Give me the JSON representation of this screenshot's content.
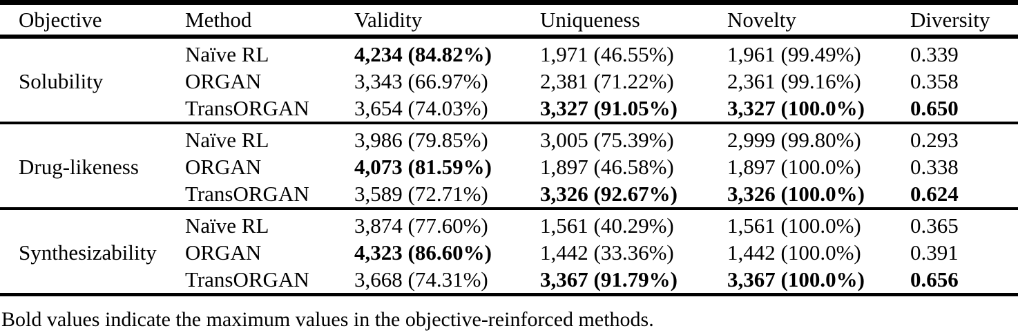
{
  "colors": {
    "background": "#ffffff",
    "text": "#000000",
    "rule": "#000000"
  },
  "table": {
    "headers": [
      "Objective",
      "Method",
      "Validity",
      "Uniqueness",
      "Novelty",
      "Diversity"
    ],
    "groups": [
      {
        "objective": "Solubility",
        "rows": [
          {
            "method": "Naïve RL",
            "validity": {
              "text": "4,234 (84.82%)",
              "bold": true
            },
            "uniqueness": {
              "text": "1,971 (46.55%)",
              "bold": false
            },
            "novelty": {
              "text": "1,961 (99.49%)",
              "bold": false
            },
            "diversity": {
              "text": "0.339",
              "bold": false
            }
          },
          {
            "method": "ORGAN",
            "validity": {
              "text": "3,343 (66.97%)",
              "bold": false
            },
            "uniqueness": {
              "text": "2,381 (71.22%)",
              "bold": false
            },
            "novelty": {
              "text": "2,361 (99.16%)",
              "bold": false
            },
            "diversity": {
              "text": "0.358",
              "bold": false
            }
          },
          {
            "method": "TransORGAN",
            "validity": {
              "text": "3,654 (74.03%)",
              "bold": false
            },
            "uniqueness": {
              "text": "3,327 (91.05%)",
              "bold": true
            },
            "novelty": {
              "text": "3,327 (100.0%)",
              "bold": true
            },
            "diversity": {
              "text": "0.650",
              "bold": true
            }
          }
        ]
      },
      {
        "objective": "Drug-likeness",
        "rows": [
          {
            "method": "Naïve RL",
            "validity": {
              "text": "3,986 (79.85%)",
              "bold": false
            },
            "uniqueness": {
              "text": "3,005 (75.39%)",
              "bold": false
            },
            "novelty": {
              "text": "2,999 (99.80%)",
              "bold": false
            },
            "diversity": {
              "text": "0.293",
              "bold": false
            }
          },
          {
            "method": "ORGAN",
            "validity": {
              "text": "4,073 (81.59%)",
              "bold": true
            },
            "uniqueness": {
              "text": "1,897 (46.58%)",
              "bold": false
            },
            "novelty": {
              "text": "1,897 (100.0%)",
              "bold": false
            },
            "diversity": {
              "text": "0.338",
              "bold": false
            }
          },
          {
            "method": "TransORGAN",
            "validity": {
              "text": "3,589 (72.71%)",
              "bold": false
            },
            "uniqueness": {
              "text": "3,326 (92.67%)",
              "bold": true
            },
            "novelty": {
              "text": "3,326 (100.0%)",
              "bold": true
            },
            "diversity": {
              "text": "0.624",
              "bold": true
            }
          }
        ]
      },
      {
        "objective": "Synthesizability",
        "rows": [
          {
            "method": "Naïve RL",
            "validity": {
              "text": "3,874 (77.60%)",
              "bold": false
            },
            "uniqueness": {
              "text": "1,561 (40.29%)",
              "bold": false
            },
            "novelty": {
              "text": "1,561 (100.0%)",
              "bold": false
            },
            "diversity": {
              "text": "0.365",
              "bold": false
            }
          },
          {
            "method": "ORGAN",
            "validity": {
              "text": "4,323 (86.60%)",
              "bold": true
            },
            "uniqueness": {
              "text": "1,442 (33.36%)",
              "bold": false
            },
            "novelty": {
              "text": "1,442 (100.0%)",
              "bold": false
            },
            "diversity": {
              "text": "0.391",
              "bold": false
            }
          },
          {
            "method": "TransORGAN",
            "validity": {
              "text": "3,668 (74.31%)",
              "bold": false
            },
            "uniqueness": {
              "text": "3,367 (91.79%)",
              "bold": true
            },
            "novelty": {
              "text": "3,367 (100.0%)",
              "bold": true
            },
            "diversity": {
              "text": "0.656",
              "bold": true
            }
          }
        ]
      }
    ]
  },
  "footnote": "Bold values indicate the maximum values in the objective-reinforced methods."
}
